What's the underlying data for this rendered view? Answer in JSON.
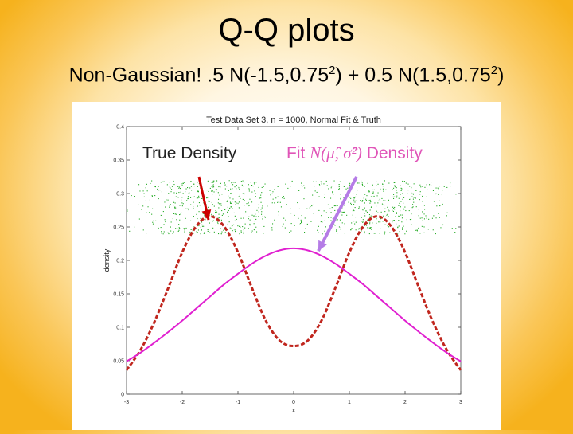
{
  "slide": {
    "title": "Q-Q plots",
    "subtitle_prefix": "Non-Gaussian! .5 N(-1.5,0.75",
    "subtitle_exp1": "2",
    "subtitle_mid": ") + 0.5 N(1.5,0.75",
    "subtitle_exp2": "2",
    "subtitle_suffix": ")"
  },
  "annotations": {
    "true_density_label": "True Density",
    "fit_label_prefix": "Fit ",
    "fit_label_math": "N(μ̂, σ̂²)",
    "fit_label_suffix": " Density",
    "true_arrow_color": "#cc0000",
    "fit_arrow_color": "#b57ce6",
    "fit_label_color": "#e055b8"
  },
  "chart_data": {
    "type": "line",
    "title": "Test Data Set 3, n = 1000, Normal Fit & Truth",
    "xlabel": "x",
    "ylabel": "density",
    "xlim": [
      -3,
      3
    ],
    "ylim": [
      0,
      0.4
    ],
    "xticks": [
      -3,
      -2,
      -1,
      0,
      1,
      2,
      3
    ],
    "xtick_labels": [
      "-3",
      "-2",
      "-1",
      "0",
      "1",
      "2",
      "3"
    ],
    "yticks": [
      0,
      0.05,
      0.1,
      0.15,
      0.2,
      0.25,
      0.3,
      0.35,
      0.4
    ],
    "ytick_labels": [
      "0",
      "0.05",
      "0.1",
      "0.15",
      "0.2",
      "0.25",
      "0.3",
      "0.35",
      "0.4"
    ],
    "grid": false,
    "series": [
      {
        "name": "True Density",
        "style": "dashed",
        "color": "#c0261e",
        "x": [
          -3,
          -2.75,
          -2.5,
          -2.25,
          -2,
          -1.75,
          -1.5,
          -1.25,
          -1,
          -0.75,
          -0.5,
          -0.25,
          0,
          0.25,
          0.5,
          0.75,
          1,
          1.25,
          1.5,
          1.75,
          2,
          2.25,
          2.5,
          2.75,
          3
        ],
        "y": [
          0.036,
          0.066,
          0.108,
          0.159,
          0.212,
          0.251,
          0.266,
          0.251,
          0.212,
          0.159,
          0.11,
          0.08,
          0.072,
          0.08,
          0.11,
          0.159,
          0.212,
          0.251,
          0.266,
          0.251,
          0.212,
          0.159,
          0.108,
          0.066,
          0.036
        ]
      },
      {
        "name": "Fit N(μ̂, σ̂²) Density",
        "style": "solid",
        "color": "#e020d0",
        "x": [
          -3,
          -2.75,
          -2.5,
          -2.25,
          -2,
          -1.75,
          -1.5,
          -1.25,
          -1,
          -0.75,
          -0.5,
          -0.25,
          0,
          0.25,
          0.5,
          0.75,
          1,
          1.25,
          1.5,
          1.75,
          2,
          2.25,
          2.5,
          2.75,
          3
        ],
        "y": [
          0.049,
          0.062,
          0.077,
          0.093,
          0.11,
          0.128,
          0.146,
          0.164,
          0.18,
          0.195,
          0.207,
          0.215,
          0.218,
          0.215,
          0.207,
          0.195,
          0.18,
          0.164,
          0.146,
          0.128,
          0.11,
          0.093,
          0.077,
          0.062,
          0.049
        ]
      },
      {
        "name": "data points",
        "style": "jitter-dots",
        "color": "#22aa22",
        "n": 1000,
        "y_band": [
          0.24,
          0.32
        ]
      }
    ]
  }
}
